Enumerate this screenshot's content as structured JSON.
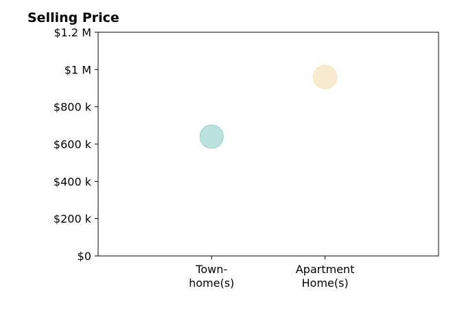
{
  "chart_data": {
    "type": "scatter",
    "title": "Selling Price",
    "xlabel": "",
    "ylabel": "",
    "categories": [
      [
        "Town-",
        "home(s)"
      ],
      [
        "Apartment",
        "Home(s)"
      ]
    ],
    "x_positions": [
      1,
      2
    ],
    "xlim": [
      0,
      3
    ],
    "values": [
      640000,
      960000
    ],
    "ylim": [
      0,
      1200000
    ],
    "yticks": [
      0,
      200000,
      400000,
      600000,
      800000,
      1000000,
      1200000
    ],
    "ytick_labels": [
      "$0",
      "$200 k",
      "$400 k",
      "$600 k",
      "$800 k",
      "$1 M",
      "$1.2 M"
    ],
    "point_colors": [
      "#8fcfcb",
      "#f5deb1"
    ],
    "grid": false,
    "legend": "none"
  }
}
